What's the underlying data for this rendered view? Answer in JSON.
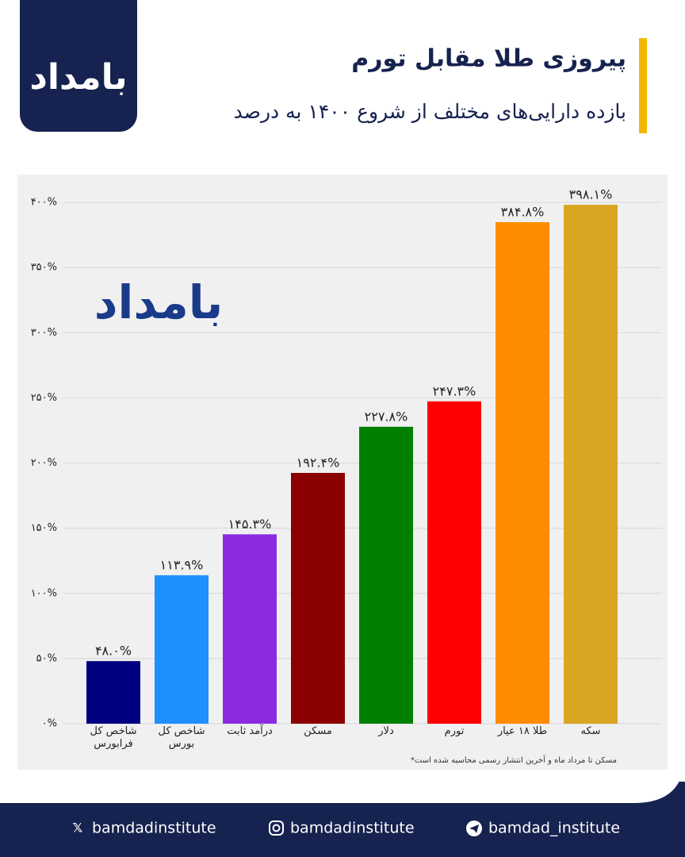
{
  "logo": "بامداد",
  "chart_data": {
    "type": "bar",
    "title": "پیروزی طلا مقابل تورم",
    "subtitle": "بازده دارایی‌های مختلف از شروع ۱۴۰۰ به درصد",
    "categories": [
      "شاخص کل فرابورس",
      "شاخص کل بورس",
      "درآمد ثابت",
      "مسکن",
      "دلار",
      "تورم",
      "طلا ۱۸ عیار",
      "سکه"
    ],
    "values": [
      48.0,
      113.9,
      145.3,
      192.4,
      227.8,
      247.3,
      384.8,
      398.1
    ],
    "value_labels": [
      "۴۸.۰%",
      "۱۱۳.۹%",
      "۱۴۵.۳%",
      "۱۹۲.۴%",
      "۲۲۷.۸%",
      "۲۴۷.۳%",
      "۳۸۴.۸%",
      "۳۹۸.۱%"
    ],
    "colors": [
      "#000080",
      "#1e90ff",
      "#8a2be2",
      "#8b0000",
      "#008000",
      "#ff0000",
      "#ff8c00",
      "#daa520"
    ],
    "ylim": [
      0,
      400
    ],
    "yticks": [
      {
        "value": 0,
        "label": "۰%"
      },
      {
        "value": 50,
        "label": "۵۰%"
      },
      {
        "value": 100,
        "label": "۱۰۰%"
      },
      {
        "value": 150,
        "label": "۱۵۰%"
      },
      {
        "value": 200,
        "label": "۲۰۰%"
      },
      {
        "value": 250,
        "label": "۲۵۰%"
      },
      {
        "value": 300,
        "label": "۳۰۰%"
      },
      {
        "value": 350,
        "label": "۳۵۰%"
      },
      {
        "value": 400,
        "label": "۴۰۰%"
      }
    ],
    "grid": true,
    "footnote": "*مسکن تا مرداد ماه و آخرین انتشار رسمی محاسبه شده است"
  },
  "socials": [
    "bamdadinstitute",
    "bamdadinstitute",
    "bamdad_institute"
  ]
}
